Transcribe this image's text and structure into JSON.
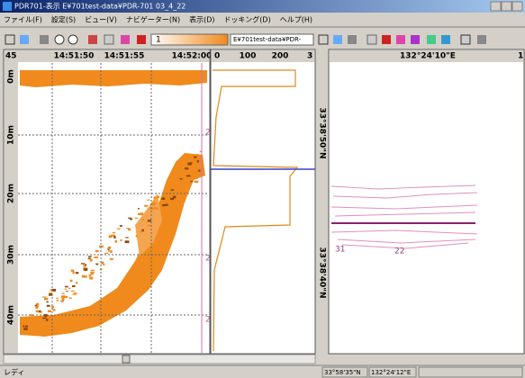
{
  "window": {
    "title": "PDR701-表示 E¥701test-data¥PDR-701 03_4_22"
  },
  "menu": [
    "ファイル(F)",
    "設定(S)",
    "ビュー(V)",
    "ナビゲーター(N)",
    "表示(D)",
    "ドッキング(D)",
    "ヘルプ(H)"
  ],
  "toolbar": {
    "path": "E¥701test-data¥PDR-",
    "level": "1"
  },
  "echogram": {
    "time_labels": [
      "45",
      "14:51:50",
      "14:51:55",
      "14:52:00"
    ],
    "depth_labels": [
      "0m",
      "10m",
      "20m",
      "30m",
      "40m"
    ],
    "markers": [
      "2",
      "2",
      "2"
    ]
  },
  "profile": {
    "axis_labels": [
      "0",
      "100",
      "200",
      "3"
    ]
  },
  "map": {
    "lon_label": "132°24'10\"E",
    "corner_label": "1",
    "lat_labels": [
      "33°38'50\"N",
      "33°38'40\"N"
    ],
    "track_labels": [
      "31",
      "22"
    ]
  },
  "status": {
    "ready": "レディ",
    "lat": "33°58'35\"N",
    "lon": "132°24'12\"E"
  }
}
